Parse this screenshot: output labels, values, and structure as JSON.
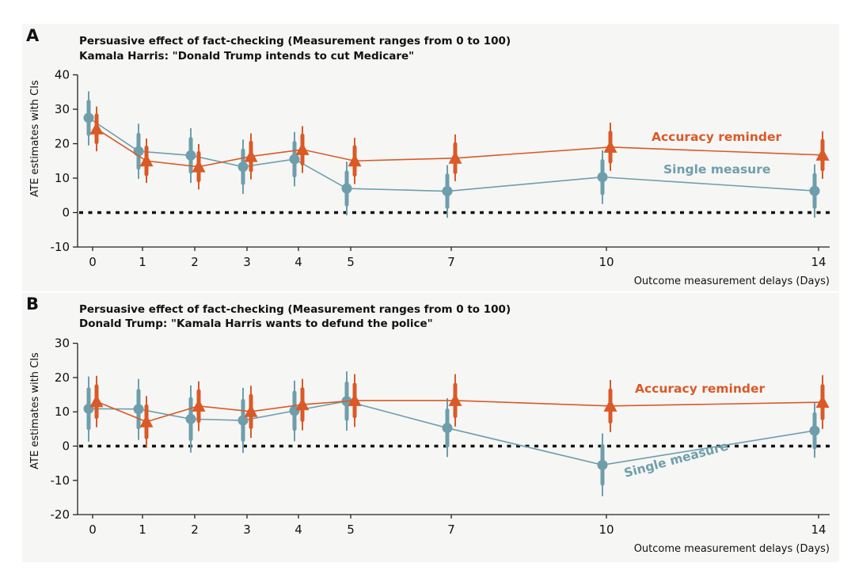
{
  "colors": {
    "single_measure": "#6e9eab",
    "accuracy_reminder": "#d95a27"
  },
  "panels": [
    {
      "letter": "A",
      "title_line1": "Persuasive effect of fact-checking (Measurement ranges from 0 to 100)",
      "title_line2": "Kamala Harris: \"Donald Trump intends to cut Medicare\"",
      "xlabel": "Outcome measurement delays (Days)",
      "ylabel": "ATE estimates with CIs",
      "series_label_accuracy": "Accuracy reminder",
      "series_label_single": "Single measure"
    },
    {
      "letter": "B",
      "title_line1": "Persuasive effect of fact-checking (Measurement ranges from 0 to 100)",
      "title_line2": "Donald Trump: \"Kamala Harris wants to defund the police\"",
      "xlabel": "Outcome measurement delays (Days)",
      "ylabel": "ATE estimates with CIs",
      "series_label_accuracy": "Accuracy reminder",
      "series_label_single": "Single measure"
    }
  ],
  "chart_data": [
    {
      "type": "line",
      "title": "Persuasive effect of fact-checking (Measurement ranges from 0 to 100)",
      "subtitle": "Kamala Harris: \"Donald Trump intends to cut Medicare\"",
      "xlabel": "Outcome measurement delays (Days)",
      "ylabel": "ATE estimates with CIs",
      "x": [
        0,
        1,
        2,
        3,
        4,
        5,
        7,
        10,
        14
      ],
      "x_tick_labels": [
        "0",
        "1",
        "2",
        "3",
        "4",
        "5",
        "7",
        "10",
        "14"
      ],
      "ylim": [
        -10,
        40
      ],
      "y_ticks": [
        -10,
        0,
        10,
        20,
        30,
        40
      ],
      "reference_line": 0,
      "series": [
        {
          "name": "Single measure",
          "marker": "circle",
          "values": [
            27.5,
            17.8,
            16.6,
            13.3,
            15.5,
            7.0,
            6.2,
            10.3,
            6.3
          ],
          "ci_low": [
            19.5,
            9.8,
            8.6,
            5.4,
            7.6,
            -0.8,
            -1.5,
            2.5,
            -1.5
          ],
          "ci_high": [
            35.2,
            25.8,
            24.5,
            21.2,
            23.4,
            14.8,
            13.8,
            18.1,
            14.0
          ]
        },
        {
          "name": "Accuracy reminder",
          "marker": "triangle",
          "values": [
            24.3,
            15.0,
            13.3,
            16.3,
            18.3,
            15.0,
            15.8,
            19.0,
            16.7
          ],
          "ci_low": [
            17.8,
            8.6,
            6.7,
            9.6,
            11.5,
            8.3,
            9.1,
            12.1,
            9.8
          ],
          "ci_high": [
            30.8,
            21.5,
            19.9,
            23.0,
            25.1,
            21.7,
            22.7,
            26.1,
            23.6
          ]
        }
      ]
    },
    {
      "type": "line",
      "title": "Persuasive effect of fact-checking (Measurement ranges from 0 to 100)",
      "subtitle": "Donald Trump: \"Kamala Harris wants to defund the police\"",
      "xlabel": "Outcome measurement delays (Days)",
      "ylabel": "ATE estimates with CIs",
      "x": [
        0,
        1,
        2,
        3,
        4,
        5,
        7,
        10,
        14
      ],
      "x_tick_labels": [
        "0",
        "1",
        "2",
        "3",
        "4",
        "5",
        "7",
        "10",
        "14"
      ],
      "ylim": [
        -20,
        30
      ],
      "y_ticks": [
        -20,
        -10,
        0,
        10,
        20,
        30
      ],
      "reference_line": 0,
      "series": [
        {
          "name": "Single measure",
          "marker": "circle",
          "values": [
            10.9,
            10.8,
            7.9,
            7.5,
            10.3,
            13.1,
            5.3,
            -5.5,
            4.5
          ],
          "ci_low": [
            1.3,
            1.8,
            -1.9,
            -2.0,
            1.4,
            4.5,
            -3.2,
            -14.6,
            -3.4
          ],
          "ci_high": [
            20.3,
            19.6,
            17.7,
            17.0,
            19.1,
            21.8,
            14.0,
            3.7,
            12.8
          ]
        },
        {
          "name": "Accuracy reminder",
          "marker": "triangle",
          "values": [
            13.0,
            7.1,
            11.7,
            10.1,
            12.1,
            13.3,
            13.3,
            11.7,
            12.8
          ],
          "ci_low": [
            5.5,
            -0.5,
            4.4,
            2.4,
            4.6,
            5.6,
            5.7,
            4.1,
            5.0
          ],
          "ci_high": [
            20.5,
            14.6,
            18.9,
            17.6,
            19.6,
            21.0,
            21.0,
            19.3,
            20.7
          ]
        }
      ]
    }
  ]
}
